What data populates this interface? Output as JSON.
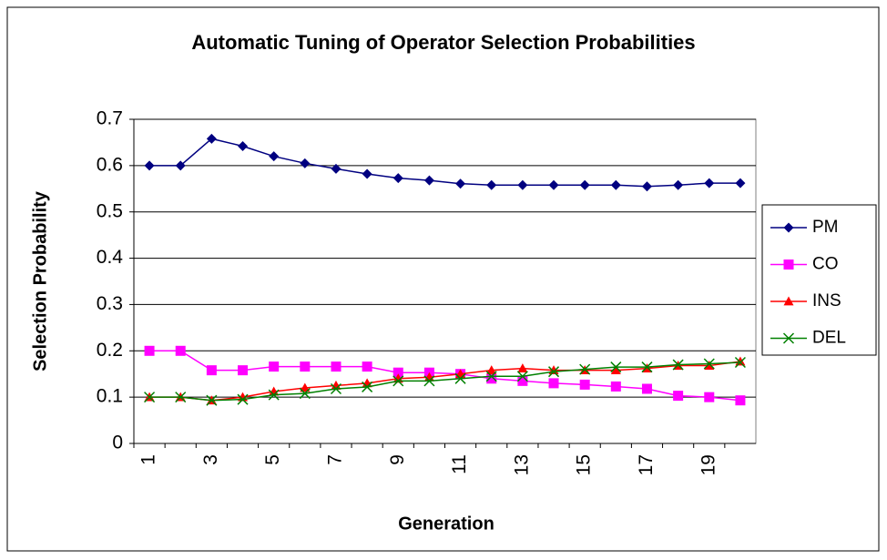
{
  "chart_data": {
    "type": "line",
    "title": "Automatic Tuning of Operator Selection Probabilities",
    "x_label": "Generation",
    "y_label": "Selection Probability",
    "categories": [
      "1",
      null,
      "3",
      null,
      "5",
      null,
      "7",
      null,
      "9",
      null,
      "11",
      null,
      "13",
      null,
      "15",
      null,
      "17",
      null,
      "19",
      null
    ],
    "series": [
      {
        "name": "PM",
        "color": "#000080",
        "marker": "diamond",
        "values": [
          0.6,
          0.6,
          0.658,
          0.642,
          0.62,
          0.605,
          0.593,
          0.582,
          0.573,
          0.568,
          0.561,
          0.558,
          0.558,
          0.558,
          0.558,
          0.558,
          0.555,
          0.558,
          0.562,
          0.562
        ]
      },
      {
        "name": "CO",
        "color": "#FF00FF",
        "marker": "square",
        "values": [
          0.2,
          0.2,
          0.158,
          0.158,
          0.166,
          0.166,
          0.166,
          0.166,
          0.153,
          0.153,
          0.15,
          0.14,
          0.135,
          0.13,
          0.127,
          0.123,
          0.118,
          0.103,
          0.1,
          0.093
        ]
      },
      {
        "name": "INS",
        "color": "#FF0000",
        "marker": "triangle",
        "values": [
          0.1,
          0.1,
          0.093,
          0.1,
          0.112,
          0.12,
          0.125,
          0.13,
          0.14,
          0.143,
          0.15,
          0.158,
          0.162,
          0.158,
          0.158,
          0.158,
          0.162,
          0.168,
          0.168,
          0.177
        ]
      },
      {
        "name": "DEL",
        "color": "#008000",
        "marker": "x",
        "values": [
          0.1,
          0.1,
          0.093,
          0.095,
          0.105,
          0.108,
          0.118,
          0.122,
          0.135,
          0.135,
          0.14,
          0.145,
          0.145,
          0.155,
          0.16,
          0.165,
          0.165,
          0.17,
          0.172,
          0.175
        ]
      }
    ],
    "ylim": [
      0,
      0.7
    ],
    "yticks": [
      0,
      0.1,
      0.2,
      0.3,
      0.4,
      0.5,
      0.6,
      0.7
    ],
    "grid": true,
    "legend": "right"
  }
}
